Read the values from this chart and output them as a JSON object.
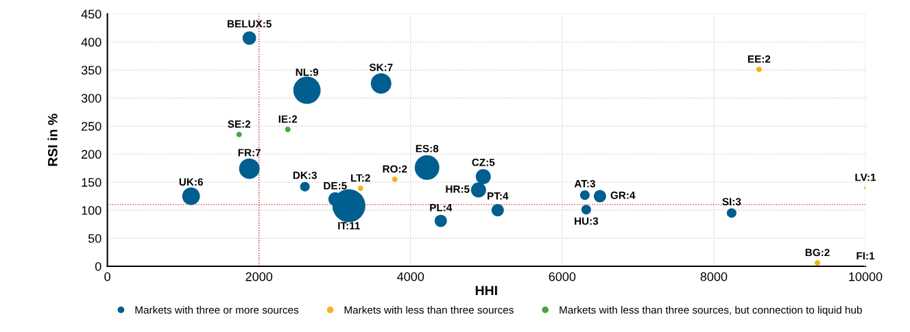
{
  "chart_data": {
    "type": "bubble",
    "xlabel": "HHI",
    "ylabel": "RSI in %",
    "xlim": [
      0,
      10000
    ],
    "xticks": [
      0,
      2000,
      4000,
      6000,
      8000,
      10000
    ],
    "ylim": [
      0,
      450
    ],
    "yticks": [
      0,
      50,
      100,
      150,
      200,
      250,
      300,
      350,
      400,
      450
    ],
    "grid": true,
    "legend": "bottom",
    "marker": "circle",
    "series": [
      {
        "name": "Markets with three or more sources",
        "color": "#005f8f",
        "x": [
          1873,
          2633,
          3611,
          1873,
          1104,
          2606,
          3005,
          3186,
          4217,
          4959,
          4896,
          5149,
          4398,
          6299,
          6317,
          6498,
          8235
        ],
        "values": [
          407,
          314,
          326,
          174,
          125,
          142,
          120,
          108,
          176,
          160,
          136,
          100,
          81,
          127,
          101,
          125,
          95
        ],
        "sizes": [
          0.17,
          0.69,
          0.39,
          0.39,
          0.29,
          0.085,
          0.17,
          1,
          0.56,
          0.21,
          0.21,
          0.14,
          0.14,
          0.085,
          0.085,
          0.14,
          0.085
        ]
      },
      {
        "name": "Markets with less than three sources",
        "color": "#f5b21b",
        "x": [
          3339,
          3792,
          8597,
          9367,
          10000,
          10000
        ],
        "values": [
          139,
          155,
          351,
          6,
          140,
          0
        ],
        "sizes": [
          0.028,
          0.028,
          0.028,
          0.028,
          0.007,
          0.007
        ]
      },
      {
        "name": "Markets with less than three sources, but connection to liquid hub",
        "color": "#43a843",
        "x": [
          1738,
          2380
        ],
        "values": [
          235,
          244
        ],
        "sizes": [
          0.028,
          0.028
        ]
      }
    ],
    "ref_lines": [
      {
        "axis": "x",
        "value": 2000,
        "color": "#e0202a",
        "line_style": "dotted"
      },
      {
        "axis": "y",
        "value": 110,
        "color": "#e0202a",
        "line_style": "dotted"
      }
    ],
    "annotations": [
      {
        "text": "BELUX:5",
        "x": 1873,
        "y": 407
      },
      {
        "text": "NL:9",
        "x": 2633,
        "y": 314
      },
      {
        "text": "SK:7",
        "x": 3611,
        "y": 326
      },
      {
        "text": "FR:7",
        "x": 1873,
        "y": 174
      },
      {
        "text": "UK:6",
        "x": 1104,
        "y": 125
      },
      {
        "text": "DK:3",
        "x": 2606,
        "y": 142
      },
      {
        "text": "DE:5",
        "x": 3005,
        "y": 120
      },
      {
        "text": "IT:11",
        "x": 3186,
        "y": 108
      },
      {
        "text": "ES:8",
        "x": 4217,
        "y": 176
      },
      {
        "text": "CZ:5",
        "x": 4959,
        "y": 160
      },
      {
        "text": "HR:5",
        "x": 4896,
        "y": 136
      },
      {
        "text": "PT:4",
        "x": 5149,
        "y": 100
      },
      {
        "text": "PL:4",
        "x": 4398,
        "y": 81
      },
      {
        "text": "AT:3",
        "x": 6299,
        "y": 127
      },
      {
        "text": "HU:3",
        "x": 6317,
        "y": 101
      },
      {
        "text": "GR:4",
        "x": 6498,
        "y": 125
      },
      {
        "text": "SI:3",
        "x": 8235,
        "y": 95
      },
      {
        "text": "LT:2",
        "x": 3339,
        "y": 139
      },
      {
        "text": "RO:2",
        "x": 3792,
        "y": 155
      },
      {
        "text": "EE:2",
        "x": 8597,
        "y": 351
      },
      {
        "text": "BG:2",
        "x": 9367,
        "y": 6
      },
      {
        "text": "LV:1",
        "x": 10000,
        "y": 140
      },
      {
        "text": "FI:1",
        "x": 10000,
        "y": 0
      },
      {
        "text": "SE:2",
        "x": 1738,
        "y": 235
      },
      {
        "text": "IE:2",
        "x": 2380,
        "y": 244
      }
    ]
  }
}
